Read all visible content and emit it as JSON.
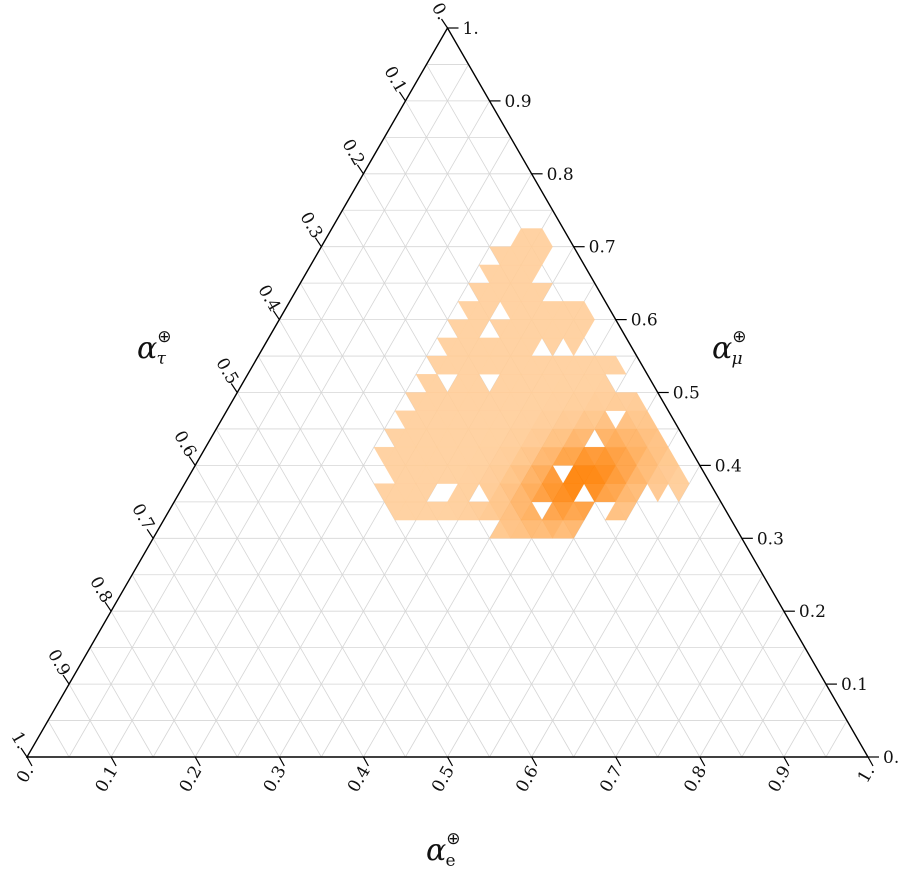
{
  "chart_data": {
    "type": "heatmap",
    "layout": "ternary",
    "colormap": {
      "low": "#ffd9b0",
      "high": "#ff7f00"
    },
    "grid": true,
    "axes": {
      "bottom": {
        "symbol": "α",
        "superscript": "⊕",
        "subscript": "e",
        "ticks": [
          "0.",
          "0.1",
          "0.2",
          "0.3",
          "0.4",
          "0.5",
          "0.6",
          "0.7",
          "0.8",
          "0.9",
          "1."
        ]
      },
      "right": {
        "symbol": "α",
        "superscript": "⊕",
        "subscript": "μ",
        "ticks": [
          "0.",
          "0.1",
          "0.2",
          "0.3",
          "0.4",
          "0.5",
          "0.6",
          "0.7",
          "0.8",
          "0.9",
          "1."
        ]
      },
      "left": {
        "symbol": "α",
        "superscript": "⊕",
        "subscript": "τ",
        "ticks": [
          "1.",
          "0.9",
          "0.8",
          "0.7",
          "0.6",
          "0.5",
          "0.4",
          "0.3",
          "0.2",
          "0.1",
          "0."
        ]
      }
    },
    "distribution": {
      "region": {
        "e": [
          0.2,
          0.65
        ],
        "mu": [
          0.3,
          0.75
        ],
        "tau_max": 0.4
      },
      "peak": {
        "e": 0.47,
        "mu": 0.38,
        "tau": 0.15
      },
      "peak_density": 1.0
    }
  }
}
